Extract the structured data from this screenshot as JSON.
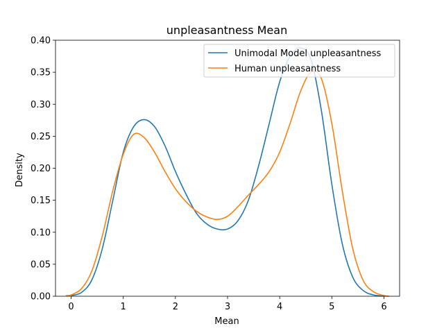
{
  "chart_data": {
    "type": "line",
    "title": "unpleasantness Mean",
    "xlabel": "Mean",
    "ylabel": "Density",
    "xlim": [
      -0.3,
      6.3
    ],
    "ylim": [
      0,
      0.4
    ],
    "xticks": [
      0,
      1,
      2,
      3,
      4,
      5,
      6
    ],
    "yticks": [
      0.0,
      0.05,
      0.1,
      0.15,
      0.2,
      0.25,
      0.3,
      0.35,
      0.4
    ],
    "xtick_labels": [
      "0",
      "1",
      "2",
      "3",
      "4",
      "5",
      "6"
    ],
    "ytick_labels": [
      "0.00",
      "0.05",
      "0.10",
      "0.15",
      "0.20",
      "0.25",
      "0.30",
      "0.35",
      "0.40"
    ],
    "grid": false,
    "legend_position": "top-right",
    "series": [
      {
        "name": "Unimodal Model unpleasantness",
        "color": "#1f77b4",
        "x": [
          0,
          0.2,
          0.4,
          0.6,
          0.8,
          1.0,
          1.2,
          1.4,
          1.6,
          1.8,
          2.0,
          2.2,
          2.4,
          2.6,
          2.8,
          3.0,
          3.2,
          3.4,
          3.6,
          3.8,
          4.0,
          4.2,
          4.4,
          4.6,
          4.8,
          5.0,
          5.2,
          5.4,
          5.6,
          5.8,
          6.0
        ],
        "y": [
          0.001,
          0.006,
          0.026,
          0.075,
          0.15,
          0.225,
          0.265,
          0.276,
          0.265,
          0.235,
          0.195,
          0.16,
          0.13,
          0.113,
          0.105,
          0.105,
          0.118,
          0.15,
          0.205,
          0.27,
          0.335,
          0.375,
          0.388,
          0.37,
          0.29,
          0.175,
          0.082,
          0.03,
          0.009,
          0.002,
          0.0
        ]
      },
      {
        "name": "Human unpleasantness",
        "color": "#ff7f0e",
        "x": [
          -0.1,
          0.0,
          0.2,
          0.4,
          0.6,
          0.8,
          1.0,
          1.2,
          1.4,
          1.6,
          1.8,
          2.0,
          2.2,
          2.4,
          2.6,
          2.8,
          3.0,
          3.2,
          3.4,
          3.6,
          3.8,
          4.0,
          4.2,
          4.4,
          4.6,
          4.8,
          5.0,
          5.2,
          5.4,
          5.6,
          5.8,
          6.0,
          6.1
        ],
        "y": [
          0.001,
          0.002,
          0.012,
          0.04,
          0.095,
          0.165,
          0.222,
          0.253,
          0.248,
          0.225,
          0.195,
          0.168,
          0.148,
          0.133,
          0.124,
          0.12,
          0.125,
          0.14,
          0.158,
          0.175,
          0.195,
          0.225,
          0.27,
          0.32,
          0.35,
          0.34,
          0.27,
          0.165,
          0.075,
          0.025,
          0.007,
          0.001,
          0.0
        ]
      }
    ]
  }
}
